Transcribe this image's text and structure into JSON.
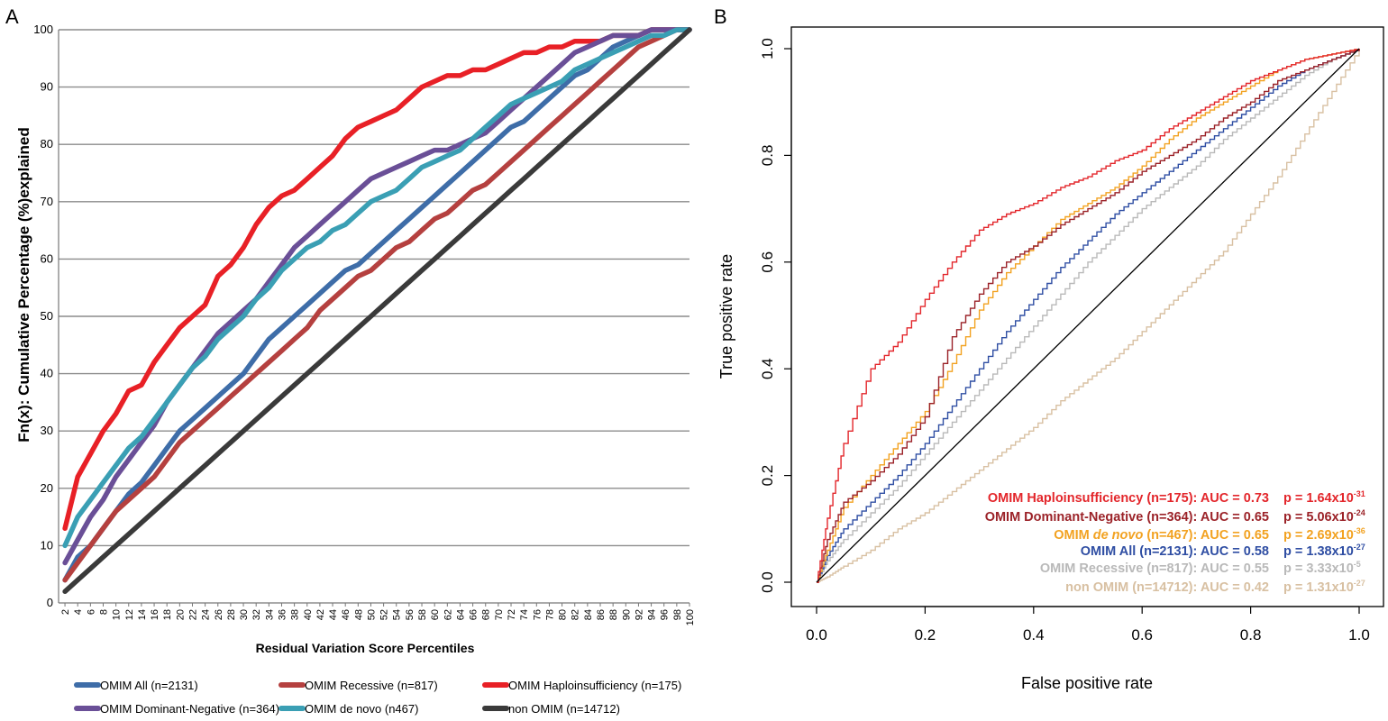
{
  "chart_data": [
    {
      "panel": "A",
      "type": "line",
      "title": "",
      "xlabel": "Residual Variation Score Percentiles",
      "ylabel": "Fn(x): Cumulative Percentage (%)explained",
      "ylim": [
        0,
        100
      ],
      "y_ticks": [
        "0",
        "10",
        "20",
        "30",
        "40",
        "50",
        "60",
        "70",
        "80",
        "90",
        "100"
      ],
      "x": [
        2,
        4,
        6,
        8,
        10,
        12,
        14,
        16,
        18,
        20,
        22,
        24,
        26,
        28,
        30,
        32,
        34,
        36,
        38,
        40,
        42,
        44,
        46,
        48,
        50,
        52,
        54,
        56,
        58,
        60,
        62,
        64,
        66,
        68,
        70,
        72,
        74,
        76,
        78,
        80,
        82,
        84,
        86,
        88,
        90,
        92,
        94,
        96,
        98,
        100
      ],
      "x_tick_labels": [
        "2",
        "4",
        "6",
        "8",
        "10",
        "12",
        "14",
        "16",
        "18",
        "20",
        "22",
        "24",
        "26",
        "28",
        "30",
        "32",
        "34",
        "36",
        "38",
        "40",
        "42",
        "44",
        "46",
        "48",
        "50",
        "52",
        "54",
        "56",
        "58",
        "60",
        "62",
        "64",
        "66",
        "68",
        "70",
        "72",
        "74",
        "76",
        "78",
        "80",
        "82",
        "84",
        "86",
        "88",
        "90",
        "92",
        "94",
        "96",
        "98",
        "100"
      ],
      "grid": true,
      "legend_position": "bottom",
      "series": [
        {
          "name": "OMIM All (n=2131)",
          "color": "#3e6da8",
          "values": [
            4,
            8,
            10,
            13,
            16,
            19,
            21,
            24,
            27,
            30,
            32,
            34,
            36,
            38,
            40,
            43,
            46,
            48,
            50,
            52,
            54,
            56,
            58,
            59,
            61,
            63,
            65,
            67,
            69,
            71,
            73,
            75,
            77,
            79,
            81,
            83,
            84,
            86,
            88,
            90,
            92,
            93,
            95,
            97,
            98,
            99,
            100,
            100,
            100,
            100
          ]
        },
        {
          "name": "OMIM Recessive (n=817)",
          "color": "#b5403f",
          "values": [
            4,
            7,
            10,
            13,
            16,
            18,
            20,
            22,
            25,
            28,
            30,
            32,
            34,
            36,
            38,
            40,
            42,
            44,
            46,
            48,
            51,
            53,
            55,
            57,
            58,
            60,
            62,
            63,
            65,
            67,
            68,
            70,
            72,
            73,
            75,
            77,
            79,
            81,
            83,
            85,
            87,
            89,
            91,
            93,
            95,
            97,
            98,
            99,
            100,
            100
          ]
        },
        {
          "name": "OMIM Haploinsufficiency (n=175)",
          "color": "#e82026",
          "values": [
            13,
            22,
            26,
            30,
            33,
            37,
            38,
            42,
            45,
            48,
            50,
            52,
            57,
            59,
            62,
            66,
            69,
            71,
            72,
            74,
            76,
            78,
            81,
            83,
            84,
            85,
            86,
            88,
            90,
            91,
            92,
            92,
            93,
            93,
            94,
            95,
            96,
            96,
            97,
            97,
            98,
            98,
            98,
            99,
            99,
            99,
            100,
            100,
            100,
            100
          ]
        },
        {
          "name": "OMIM Dominant-Negative (n=364)",
          "color": "#6a4f97",
          "values": [
            7,
            11,
            15,
            18,
            22,
            25,
            28,
            31,
            35,
            38,
            41,
            44,
            47,
            49,
            51,
            53,
            56,
            59,
            62,
            64,
            66,
            68,
            70,
            72,
            74,
            75,
            76,
            77,
            78,
            79,
            79,
            80,
            81,
            82,
            84,
            86,
            88,
            90,
            92,
            94,
            96,
            97,
            98,
            99,
            99,
            99,
            100,
            100,
            100,
            100
          ]
        },
        {
          "name": "OMIM de novo (n467)",
          "color": "#3a9fb4",
          "values": [
            10,
            15,
            18,
            21,
            24,
            27,
            29,
            32,
            35,
            38,
            41,
            43,
            46,
            48,
            50,
            53,
            55,
            58,
            60,
            62,
            63,
            65,
            66,
            68,
            70,
            71,
            72,
            74,
            76,
            77,
            78,
            79,
            81,
            83,
            85,
            87,
            88,
            89,
            90,
            91,
            93,
            94,
            95,
            96,
            97,
            98,
            99,
            99,
            100,
            100
          ]
        },
        {
          "name": "non OMIM (n=14712)",
          "color": "#3a3a3a",
          "values": [
            2,
            4,
            6,
            8,
            10,
            12,
            14,
            16,
            18,
            20,
            22,
            24,
            26,
            28,
            30,
            32,
            34,
            36,
            38,
            40,
            42,
            44,
            46,
            48,
            50,
            52,
            54,
            56,
            58,
            60,
            62,
            64,
            66,
            68,
            70,
            72,
            74,
            76,
            78,
            80,
            82,
            84,
            86,
            88,
            90,
            92,
            94,
            96,
            98,
            100
          ]
        }
      ]
    },
    {
      "panel": "B",
      "type": "line",
      "title": "",
      "xlabel": "False positive rate",
      "ylabel": "True positive rate",
      "xlim": [
        0,
        1
      ],
      "ylim": [
        0,
        1
      ],
      "x_ticks": [
        "0.0",
        "0.2",
        "0.4",
        "0.6",
        "0.8",
        "1.0"
      ],
      "y_ticks": [
        "0.0",
        "0.2",
        "0.4",
        "0.6",
        "0.8",
        "1.0"
      ],
      "grid": false,
      "x": [
        0,
        0.02,
        0.05,
        0.1,
        0.15,
        0.2,
        0.25,
        0.3,
        0.35,
        0.4,
        0.45,
        0.5,
        0.55,
        0.6,
        0.65,
        0.7,
        0.75,
        0.8,
        0.85,
        0.9,
        0.95,
        1
      ],
      "series": [
        {
          "name": "OMIM Haploinsufficiency",
          "color": "#e3262b",
          "annotation": {
            "prefix": "OMIM Haploinsufficiency (n=175): AUC = 0.73",
            "p": "p = 1.64x10",
            "exp": "-31"
          },
          "values": [
            0,
            0.12,
            0.26,
            0.4,
            0.45,
            0.53,
            0.6,
            0.66,
            0.69,
            0.71,
            0.74,
            0.76,
            0.79,
            0.81,
            0.85,
            0.88,
            0.91,
            0.94,
            0.96,
            0.98,
            0.99,
            1
          ]
        },
        {
          "name": "OMIM Dominant-Negative",
          "color": "#9b2228",
          "annotation": {
            "prefix": "OMIM Dominant-Negative (n=364): AUC = 0.65",
            "p": "p = 5.06x10",
            "exp": "-24"
          },
          "values": [
            0,
            0.08,
            0.15,
            0.19,
            0.24,
            0.31,
            0.46,
            0.54,
            0.6,
            0.63,
            0.67,
            0.7,
            0.73,
            0.77,
            0.8,
            0.83,
            0.87,
            0.9,
            0.94,
            0.96,
            0.98,
            1
          ]
        },
        {
          "name": "OMIM de novo",
          "color": "#f2a221",
          "annotation": {
            "prefix": "OMIM ",
            "italic": "de novo",
            "suffix": " (n=467): AUC = 0.65",
            "p": "p = 2.69x10",
            "exp": "-36"
          },
          "values": [
            0,
            0.06,
            0.14,
            0.2,
            0.26,
            0.32,
            0.41,
            0.51,
            0.58,
            0.63,
            0.68,
            0.71,
            0.74,
            0.78,
            0.83,
            0.87,
            0.9,
            0.93,
            0.96,
            0.98,
            0.99,
            1
          ]
        },
        {
          "name": "OMIM All",
          "color": "#2f4ea3",
          "annotation": {
            "prefix": "OMIM All (n=2131): AUC = 0.58",
            "p": "p = 1.38x10",
            "exp": "-27"
          },
          "values": [
            0,
            0.05,
            0.1,
            0.15,
            0.2,
            0.26,
            0.33,
            0.4,
            0.47,
            0.53,
            0.59,
            0.64,
            0.69,
            0.73,
            0.77,
            0.81,
            0.85,
            0.89,
            0.93,
            0.96,
            0.98,
            1
          ]
        },
        {
          "name": "OMIM Recessive",
          "color": "#b9b9b9",
          "annotation": {
            "prefix": "OMIM Recessive (n=817): AUC = 0.55",
            "p": "p = 3.33x10",
            "exp": "-5"
          },
          "values": [
            0,
            0.04,
            0.08,
            0.13,
            0.18,
            0.24,
            0.3,
            0.36,
            0.42,
            0.48,
            0.54,
            0.6,
            0.65,
            0.7,
            0.74,
            0.78,
            0.83,
            0.87,
            0.91,
            0.95,
            0.98,
            1
          ]
        },
        {
          "name": "non OMIM",
          "color": "#d8c0a2",
          "annotation": {
            "prefix": "non OMIM (n=14712): AUC = 0.42",
            "p": "p = 1.31x10",
            "exp": "-27"
          },
          "values": [
            0,
            0.01,
            0.03,
            0.06,
            0.1,
            0.13,
            0.17,
            0.21,
            0.25,
            0.29,
            0.34,
            0.38,
            0.42,
            0.47,
            0.52,
            0.57,
            0.62,
            0.69,
            0.76,
            0.84,
            0.92,
            1
          ]
        },
        {
          "name": "diagonal",
          "color": "#000000",
          "values": [
            0,
            0.02,
            0.05,
            0.1,
            0.15,
            0.2,
            0.25,
            0.3,
            0.35,
            0.4,
            0.45,
            0.5,
            0.55,
            0.6,
            0.65,
            0.7,
            0.75,
            0.8,
            0.85,
            0.9,
            0.95,
            1
          ]
        }
      ]
    }
  ]
}
